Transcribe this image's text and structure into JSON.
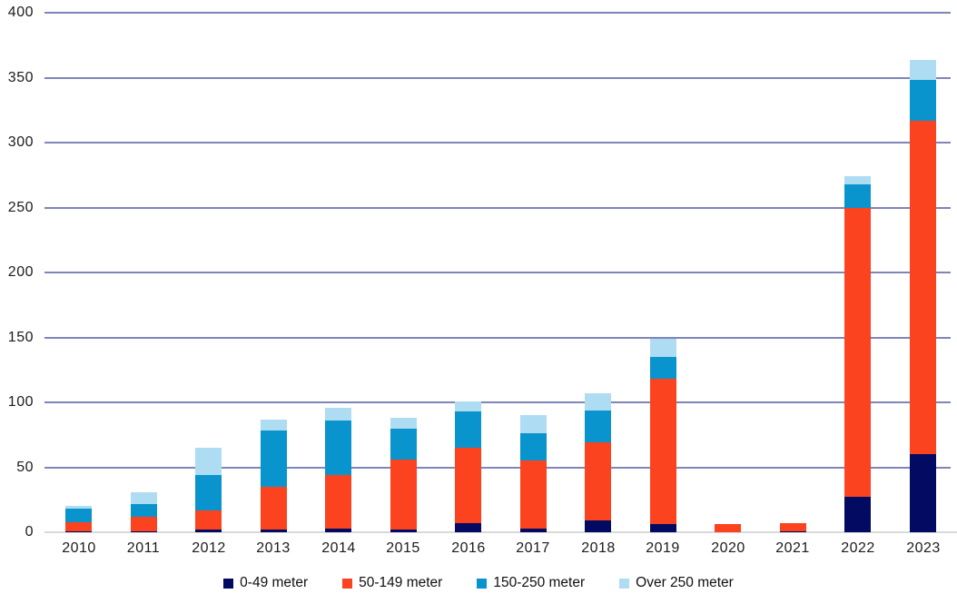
{
  "chart_data": {
    "type": "bar",
    "stacked": true,
    "title": "",
    "xlabel": "",
    "ylabel": "",
    "categories": [
      "2010",
      "2011",
      "2012",
      "2013",
      "2014",
      "2015",
      "2016",
      "2017",
      "2018",
      "2019",
      "2020",
      "2021",
      "2022",
      "2023"
    ],
    "series": [
      {
        "name": "0-49 meter",
        "color": "#020b61",
        "values": [
          1,
          1,
          2,
          2,
          3,
          2,
          7,
          3,
          9,
          6,
          0,
          1,
          27,
          60
        ]
      },
      {
        "name": "50-149 meter",
        "color": "#fb431f",
        "values": [
          7,
          11,
          15,
          33,
          41,
          54,
          58,
          52,
          60,
          112,
          6,
          6,
          223,
          257
        ]
      },
      {
        "name": "150-250 meter",
        "color": "#0a94ce",
        "values": [
          10,
          10,
          27,
          43,
          42,
          24,
          28,
          21,
          25,
          17,
          0,
          0,
          18,
          31
        ]
      },
      {
        "name": "Over 250 meter",
        "color": "#aedcf2",
        "values": [
          2,
          9,
          21,
          9,
          10,
          8,
          8,
          14,
          13,
          14,
          0,
          0,
          6,
          16
        ]
      }
    ],
    "ylim": [
      0,
      400
    ],
    "yticks": [
      0,
      50,
      100,
      150,
      200,
      250,
      300,
      350,
      400
    ],
    "grid": true,
    "legend_position": "bottom",
    "colors": {
      "gridline": "#7e85b8",
      "baseline": "#d9d9d9",
      "tick_label": "#1c1c1c"
    }
  }
}
